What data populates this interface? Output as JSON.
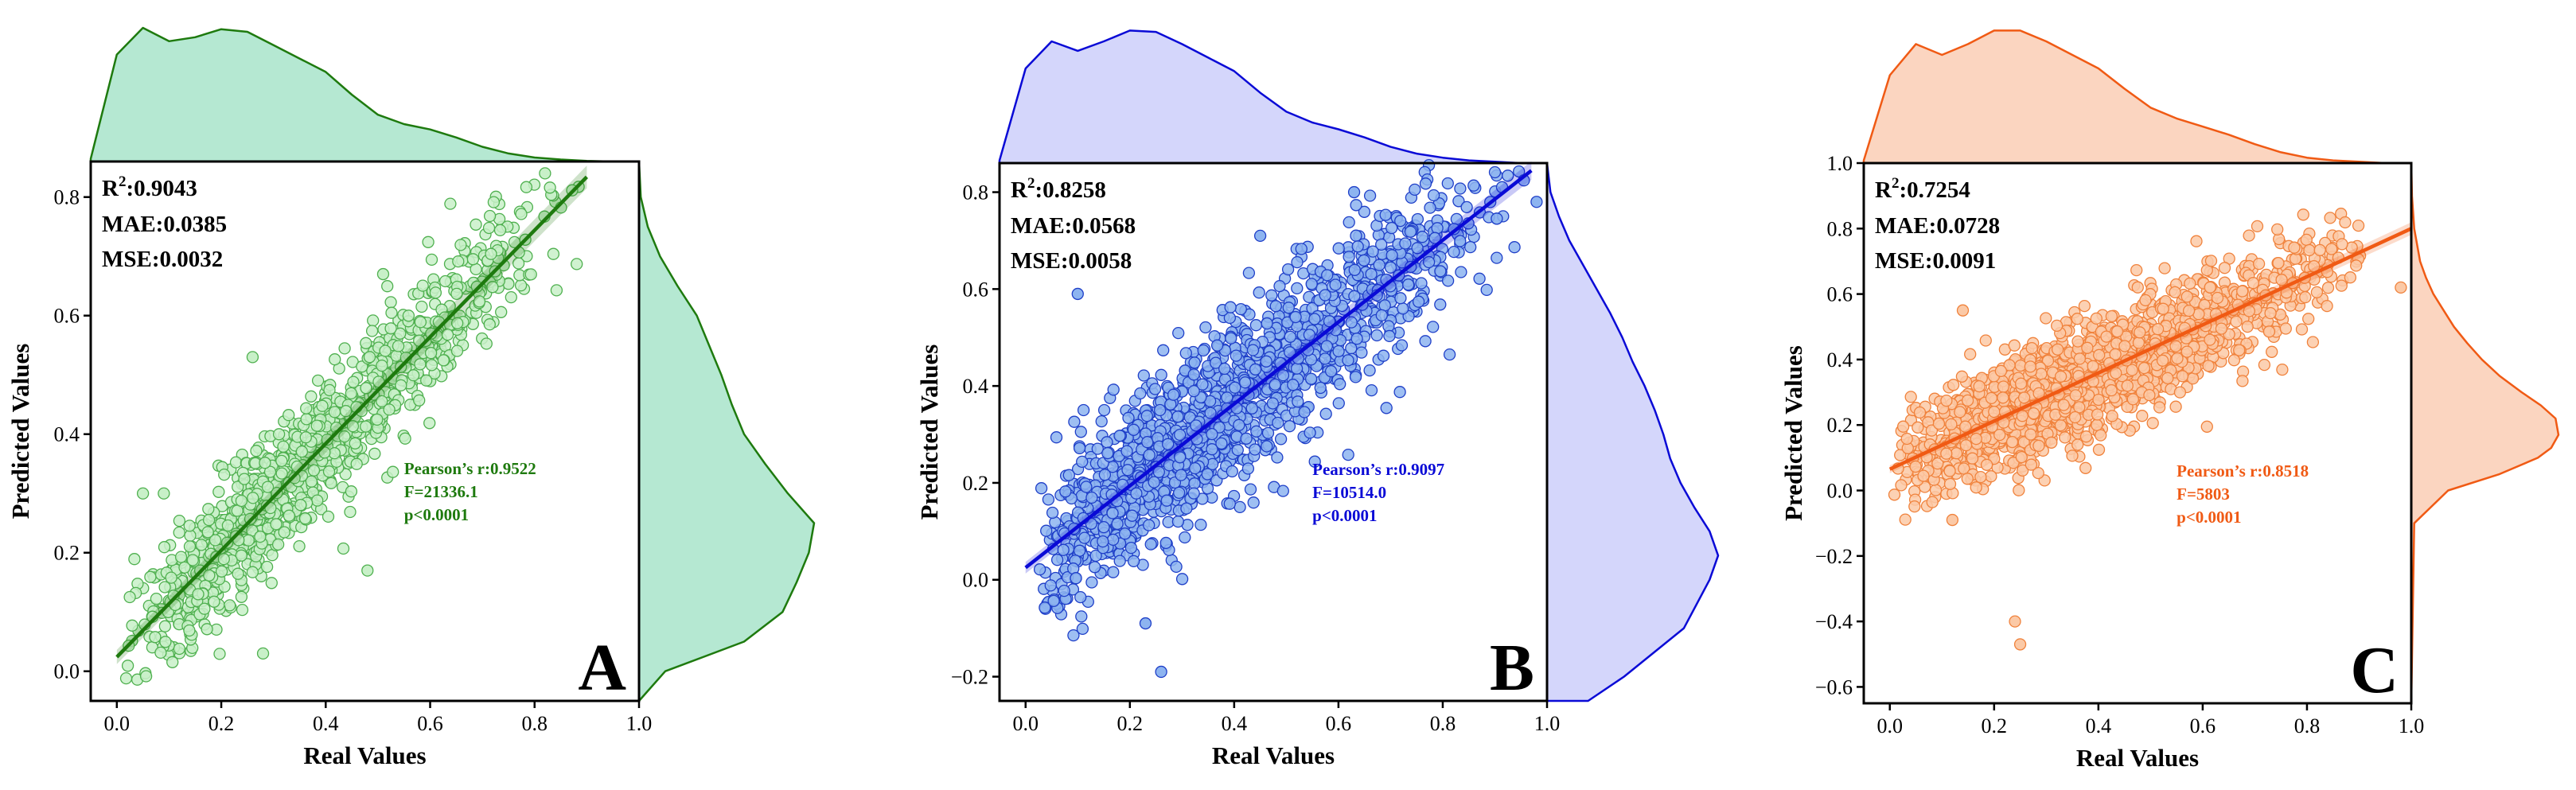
{
  "chart_data": [
    {
      "type": "scatter",
      "panel_label": "A",
      "xlabel": "Real Values",
      "ylabel": "Predicted Values",
      "xlim": [
        -0.05,
        1.0
      ],
      "ylim": [
        -0.05,
        0.86
      ],
      "xticks": [
        0.0,
        0.2,
        0.4,
        0.6,
        0.8,
        1.0
      ],
      "xtick_labels": [
        "0.0",
        "0.2",
        "0.4",
        "0.6",
        "0.8",
        "1.0"
      ],
      "yticks": [
        0.0,
        0.2,
        0.4,
        0.6,
        0.8
      ],
      "ytick_labels": [
        "0.0",
        "0.2",
        "0.4",
        "0.6",
        "0.8"
      ],
      "colors": {
        "main": "#1e7a0e",
        "fill": "#b5e8d2",
        "point_fill": "#c8f0c8",
        "point_edge": "#4fb04f"
      },
      "metrics": {
        "r2_label": "R",
        "r2_sup": "2",
        "r2_value": ":0.9043",
        "mae": "MAE:0.0385",
        "mse": "MSE:0.0032"
      },
      "pearson": {
        "r": "Pearson’s r:0.9522",
        "f": "F=21336.1",
        "p": "p<0.0001"
      },
      "regression": {
        "intercept": 0.024,
        "slope": 0.9,
        "x_range": [
          0.0,
          0.9
        ]
      },
      "point_cloud": {
        "count": 1100,
        "x_range": [
          0.0,
          0.9
        ],
        "x_mode": 0.25,
        "noise_sd": 0.055,
        "seed": 11
      },
      "outliers": [
        {
          "x": 0.26,
          "y": 0.53
        },
        {
          "x": 0.05,
          "y": 0.3
        },
        {
          "x": 0.09,
          "y": 0.3
        },
        {
          "x": 0.28,
          "y": 0.03
        },
        {
          "x": 0.48,
          "y": 0.17
        },
        {
          "x": 0.82,
          "y": 0.84
        },
        {
          "x": 0.51,
          "y": 0.67
        }
      ],
      "top_density": {
        "x": [
          -0.05,
          0.0,
          0.05,
          0.1,
          0.15,
          0.2,
          0.25,
          0.3,
          0.35,
          0.4,
          0.45,
          0.5,
          0.55,
          0.6,
          0.65,
          0.7,
          0.75,
          0.8,
          0.85,
          0.9,
          0.95,
          1.0
        ],
        "density": [
          0.02,
          0.8,
          1.0,
          0.9,
          0.93,
          0.99,
          0.97,
          0.87,
          0.77,
          0.67,
          0.5,
          0.35,
          0.28,
          0.24,
          0.18,
          0.11,
          0.06,
          0.03,
          0.015,
          0.005,
          0.0,
          0.0
        ]
      },
      "right_density": {
        "y": [
          -0.05,
          0.0,
          0.05,
          0.1,
          0.15,
          0.2,
          0.25,
          0.3,
          0.35,
          0.4,
          0.45,
          0.5,
          0.55,
          0.6,
          0.65,
          0.7,
          0.75,
          0.8,
          0.86
        ],
        "density": [
          0.0,
          0.15,
          0.6,
          0.82,
          0.9,
          0.97,
          1.0,
          0.85,
          0.72,
          0.6,
          0.53,
          0.47,
          0.4,
          0.33,
          0.22,
          0.12,
          0.05,
          0.01,
          0.0
        ]
      }
    },
    {
      "type": "scatter",
      "panel_label": "B",
      "xlabel": "Real Values",
      "ylabel": "Predicted Values",
      "xlim": [
        -0.05,
        1.0
      ],
      "ylim": [
        -0.25,
        0.86
      ],
      "xticks": [
        0.0,
        0.2,
        0.4,
        0.6,
        0.8,
        1.0
      ],
      "xtick_labels": [
        "0.0",
        "0.2",
        "0.4",
        "0.6",
        "0.8",
        "1.0"
      ],
      "yticks": [
        -0.2,
        0.0,
        0.2,
        0.4,
        0.6,
        0.8
      ],
      "ytick_labels": [
        "−0.2",
        "0.0",
        "0.2",
        "0.4",
        "0.6",
        "0.8"
      ],
      "colors": {
        "main": "#0a0ad6",
        "fill": "#d4d6fb",
        "point_fill": "#8db4f0",
        "point_edge": "#1f3fc8"
      },
      "metrics": {
        "r2_label": "R",
        "r2_sup": "2",
        "r2_value": ":0.8258",
        "mae": "MAE:0.0568",
        "mse": "MSE:0.0058"
      },
      "pearson": {
        "r": "Pearson’s r:0.9097",
        "f": "F=10514.0",
        "p": "p<0.0001"
      },
      "regression": {
        "intercept": 0.025,
        "slope": 0.845,
        "x_range": [
          0.0,
          0.97
        ]
      },
      "point_cloud": {
        "count": 1500,
        "x_range": [
          0.0,
          0.97
        ],
        "x_mode": 0.25,
        "noise_sd": 0.085,
        "seed": 23
      },
      "outliers": [
        {
          "x": 0.26,
          "y": -0.19
        },
        {
          "x": 0.23,
          "y": -0.09
        },
        {
          "x": 0.1,
          "y": 0.59
        },
        {
          "x": 0.98,
          "y": 0.78
        },
        {
          "x": 0.63,
          "y": 0.8
        },
        {
          "x": 0.45,
          "y": 0.71
        }
      ],
      "top_density": {
        "x": [
          -0.05,
          0.0,
          0.05,
          0.1,
          0.15,
          0.2,
          0.25,
          0.3,
          0.35,
          0.4,
          0.45,
          0.5,
          0.55,
          0.6,
          0.65,
          0.7,
          0.75,
          0.8,
          0.85,
          0.9,
          0.95,
          1.0
        ],
        "density": [
          0.02,
          0.7,
          0.9,
          0.83,
          0.9,
          0.98,
          0.97,
          0.88,
          0.78,
          0.68,
          0.52,
          0.38,
          0.3,
          0.25,
          0.19,
          0.12,
          0.07,
          0.04,
          0.02,
          0.01,
          0.0,
          0.0
        ]
      },
      "right_density": {
        "y": [
          -0.25,
          -0.2,
          -0.1,
          0.0,
          0.05,
          0.1,
          0.15,
          0.2,
          0.25,
          0.3,
          0.35,
          0.4,
          0.45,
          0.5,
          0.55,
          0.6,
          0.65,
          0.7,
          0.75,
          0.8,
          0.86
        ],
        "density": [
          0.24,
          0.45,
          0.8,
          0.95,
          1.0,
          0.95,
          0.86,
          0.78,
          0.72,
          0.68,
          0.63,
          0.57,
          0.5,
          0.44,
          0.37,
          0.29,
          0.21,
          0.13,
          0.07,
          0.02,
          0.0
        ]
      }
    },
    {
      "type": "scatter",
      "panel_label": "C",
      "xlabel": "Real Values",
      "ylabel": "Predicted Values",
      "xlim": [
        -0.05,
        1.0
      ],
      "ylim": [
        -0.65,
        1.0
      ],
      "xticks": [
        0.0,
        0.2,
        0.4,
        0.6,
        0.8,
        1.0
      ],
      "xtick_labels": [
        "0.0",
        "0.2",
        "0.4",
        "0.6",
        "0.8",
        "1.0"
      ],
      "yticks": [
        -0.6,
        -0.4,
        -0.2,
        0.0,
        0.2,
        0.4,
        0.6,
        0.8,
        1.0
      ],
      "ytick_labels": [
        "−0.6",
        "−0.4",
        "−0.2",
        "0.0",
        "0.2",
        "0.4",
        "0.6",
        "0.8",
        "1.0"
      ],
      "colors": {
        "main": "#f05a14",
        "fill": "#fbd5c0",
        "point_fill": "#fbc9a6",
        "point_edge": "#f0823c"
      },
      "metrics": {
        "r2_label": "R",
        "r2_sup": "2",
        "r2_value": ":0.7254",
        "mae": "MAE:0.0728",
        "mse": "MSE:0.0091"
      },
      "pearson": {
        "r": "Pearson’s r:0.8518",
        "f": "F=5803",
        "p": "p<0.0001"
      },
      "regression": {
        "intercept": 0.065,
        "slope": 0.735,
        "x_range": [
          0.0,
          1.0
        ]
      },
      "point_cloud": {
        "count": 1700,
        "x_range": [
          0.0,
          0.92
        ],
        "x_mode": 0.25,
        "noise_sd": 0.085,
        "seed": 37
      },
      "outliers": [
        {
          "x": 0.24,
          "y": -0.4
        },
        {
          "x": 0.25,
          "y": -0.47
        },
        {
          "x": 0.12,
          "y": -0.09
        },
        {
          "x": 0.98,
          "y": 0.62
        },
        {
          "x": 0.14,
          "y": 0.55
        }
      ],
      "top_density": {
        "x": [
          -0.05,
          0.0,
          0.05,
          0.1,
          0.15,
          0.2,
          0.25,
          0.3,
          0.35,
          0.4,
          0.45,
          0.5,
          0.55,
          0.6,
          0.65,
          0.7,
          0.75,
          0.8,
          0.85,
          0.9,
          0.95,
          1.0
        ],
        "density": [
          0.02,
          0.65,
          0.88,
          0.8,
          0.88,
          0.98,
          0.98,
          0.9,
          0.8,
          0.7,
          0.55,
          0.41,
          0.33,
          0.27,
          0.21,
          0.14,
          0.08,
          0.04,
          0.02,
          0.01,
          0.0,
          0.0
        ]
      },
      "right_density": {
        "y": [
          -0.65,
          -0.1,
          0.0,
          0.05,
          0.1,
          0.13,
          0.17,
          0.22,
          0.26,
          0.3,
          0.35,
          0.4,
          0.45,
          0.5,
          0.55,
          0.6,
          0.65,
          0.7,
          0.8,
          0.9,
          1.0
        ],
        "density": [
          0.0,
          0.02,
          0.25,
          0.6,
          0.86,
          0.95,
          1.0,
          0.98,
          0.88,
          0.75,
          0.6,
          0.48,
          0.38,
          0.29,
          0.22,
          0.15,
          0.1,
          0.06,
          0.02,
          0.005,
          0.0
        ]
      }
    }
  ]
}
